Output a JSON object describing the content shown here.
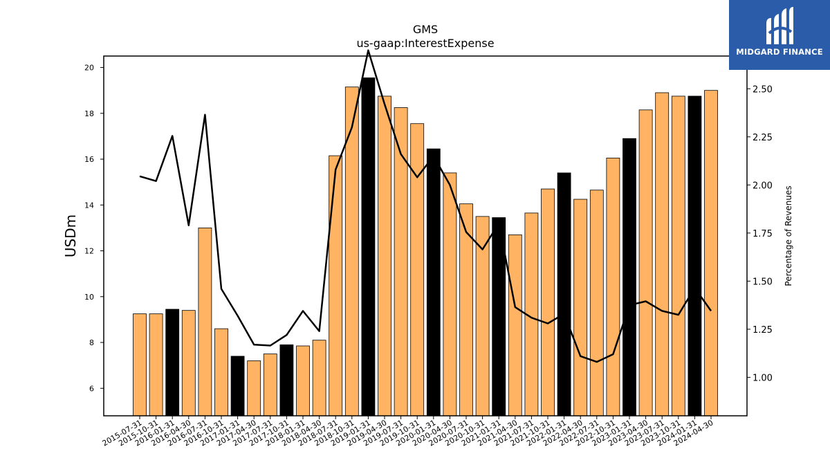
{
  "logo": {
    "text": "MIDGARD FINANCE",
    "icon": "midgard-m-logo-icon",
    "background": "#2a5caa"
  },
  "colors": {
    "bar_regular": "#ffb363",
    "bar_highlight": "#000000",
    "line": "#000000"
  },
  "chart_data": {
    "type": "bar",
    "title": "GMS",
    "subtitle": "us-gaap:InterestExpense",
    "ylabel": "USDm",
    "ylabel_right": "Percentage of Revenues",
    "ylim": [
      4.8,
      20.5
    ],
    "yticks": [
      6,
      8,
      10,
      12,
      14,
      16,
      18,
      20
    ],
    "ylim_right": [
      0.8,
      2.67
    ],
    "yticks_right": [
      "1.00",
      "1.25",
      "1.50",
      "1.75",
      "2.00",
      "2.25",
      "2.50"
    ],
    "categories": [
      "2015-07-31",
      "2015-10-31",
      "2016-01-31",
      "2016-04-30",
      "2016-07-31",
      "2016-10-31",
      "2017-01-31",
      "2017-04-30",
      "2017-07-31",
      "2017-10-31",
      "2018-01-31",
      "2018-04-30",
      "2018-07-31",
      "2018-10-31",
      "2019-01-31",
      "2019-04-30",
      "2019-07-31",
      "2019-10-31",
      "2020-01-31",
      "2020-04-30",
      "2020-07-31",
      "2020-10-31",
      "2021-01-31",
      "2021-04-30",
      "2021-07-31",
      "2021-10-31",
      "2022-01-31",
      "2022-04-30",
      "2022-07-31",
      "2022-10-31",
      "2023-01-31",
      "2023-04-30",
      "2023-07-31",
      "2023-10-31",
      "2024-01-31",
      "2024-04-30"
    ],
    "series": [
      {
        "type": "bar",
        "axis": "left",
        "values": [
          9.25,
          9.25,
          9.45,
          9.4,
          13.0,
          8.6,
          7.4,
          7.2,
          7.5,
          7.9,
          7.85,
          8.1,
          16.15,
          19.15,
          19.55,
          18.75,
          18.25,
          17.55,
          16.45,
          15.4,
          14.05,
          13.5,
          13.45,
          12.7,
          13.65,
          14.7,
          15.4,
          14.25,
          14.65,
          16.05,
          16.9,
          18.15,
          18.9,
          18.75,
          18.75,
          19.0
        ],
        "highlight": [
          false,
          false,
          true,
          false,
          false,
          false,
          true,
          false,
          false,
          true,
          false,
          false,
          false,
          false,
          true,
          false,
          false,
          false,
          true,
          false,
          false,
          false,
          true,
          false,
          false,
          false,
          true,
          false,
          false,
          false,
          true,
          false,
          false,
          false,
          true,
          false
        ]
      },
      {
        "type": "line",
        "axis": "right",
        "values": [
          2.045,
          2.02,
          2.255,
          1.79,
          2.365,
          1.46,
          1.32,
          1.17,
          1.165,
          1.22,
          1.345,
          1.24,
          2.08,
          2.3,
          2.7,
          2.42,
          2.16,
          2.04,
          2.15,
          2.0,
          1.755,
          1.665,
          1.8,
          1.365,
          1.31,
          1.28,
          1.33,
          1.11,
          1.08,
          1.12,
          1.375,
          1.395,
          1.345,
          1.325,
          1.465,
          1.345
        ]
      }
    ]
  }
}
